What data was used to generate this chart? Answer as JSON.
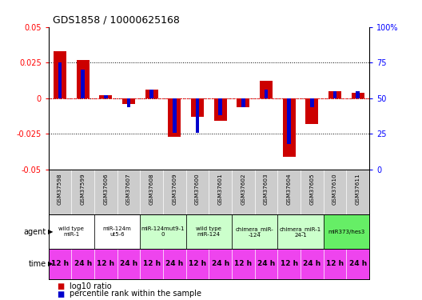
{
  "title": "GDS1858 / 10000625168",
  "samples": [
    "GSM37598",
    "GSM37599",
    "GSM37606",
    "GSM37607",
    "GSM37608",
    "GSM37609",
    "GSM37600",
    "GSM37601",
    "GSM37602",
    "GSM37603",
    "GSM37604",
    "GSM37605",
    "GSM37610",
    "GSM37611"
  ],
  "log10_ratio": [
    0.033,
    0.027,
    0.002,
    -0.004,
    0.006,
    -0.027,
    -0.013,
    -0.016,
    -0.006,
    0.012,
    -0.041,
    -0.018,
    0.005,
    0.004
  ],
  "percentile_rank": [
    0.75,
    0.7,
    0.52,
    0.44,
    0.56,
    0.26,
    0.26,
    0.38,
    0.44,
    0.56,
    0.18,
    0.44,
    0.55,
    0.55
  ],
  "ylim_left": [
    -0.05,
    0.05
  ],
  "ylim_right": [
    0,
    100
  ],
  "yticks_left": [
    -0.05,
    -0.025,
    0.0,
    0.025,
    0.05
  ],
  "yticks_right": [
    0,
    25,
    50,
    75,
    100
  ],
  "ytick_labels_left": [
    "-0.05",
    "-0.025",
    "0",
    "0.025",
    "0.05"
  ],
  "ytick_labels_right": [
    "0",
    "25",
    "50",
    "75",
    "100%"
  ],
  "agent_groups": [
    {
      "label": "wild type\nmiR-1",
      "cols": [
        0,
        1
      ],
      "color": "#ffffff"
    },
    {
      "label": "miR-124m\nut5-6",
      "cols": [
        2,
        3
      ],
      "color": "#ffffff"
    },
    {
      "label": "miR-124mut9-1\n0",
      "cols": [
        4,
        5
      ],
      "color": "#ccffcc"
    },
    {
      "label": "wild type\nmiR-124",
      "cols": [
        6,
        7
      ],
      "color": "#ccffcc"
    },
    {
      "label": "chimera_miR-\n-124",
      "cols": [
        8,
        9
      ],
      "color": "#ccffcc"
    },
    {
      "label": "chimera_miR-1\n24-1",
      "cols": [
        10,
        11
      ],
      "color": "#ccffcc"
    },
    {
      "label": "miR373/hes3",
      "cols": [
        12,
        13
      ],
      "color": "#66ee66"
    }
  ],
  "time_labels": [
    "12 h",
    "24 h",
    "12 h",
    "24 h",
    "12 h",
    "24 h",
    "12 h",
    "24 h",
    "12 h",
    "24 h",
    "12 h",
    "24 h",
    "12 h",
    "24 h"
  ],
  "time_color": "#ee44ee",
  "bar_width": 0.55,
  "red_color": "#cc0000",
  "blue_color": "#0000cc",
  "sample_bg_color": "#cccccc",
  "agent_default_color": "#ffffff"
}
